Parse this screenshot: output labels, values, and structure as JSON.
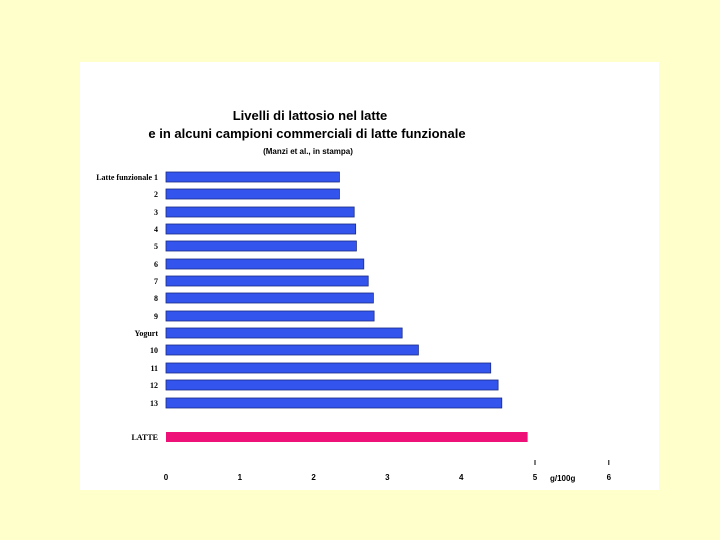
{
  "chart_data": {
    "type": "bar",
    "orientation": "horizontal",
    "title": "Livelli di lattosio nel latte",
    "subtitle": "e in alcuni campioni commerciali di latte funzionale",
    "source": "(Manzi et al., in stampa)",
    "xlabel": "g/100g",
    "ylabel": "",
    "xlim": [
      0,
      6
    ],
    "xticks": [
      "0",
      "1",
      "2",
      "3",
      "4",
      "5",
      "6"
    ],
    "grid": false,
    "categories": [
      "Latte funzionale 1",
      "2",
      "3",
      "4",
      "5",
      "6",
      "7",
      "8",
      "9",
      "Yogurt",
      "10",
      "11",
      "12",
      "13",
      "LATTE"
    ],
    "values": [
      2.35,
      2.35,
      2.55,
      2.57,
      2.58,
      2.68,
      2.74,
      2.81,
      2.82,
      3.2,
      3.42,
      4.4,
      4.5,
      4.55,
      4.9
    ],
    "colors": {
      "bar": "#3355ee",
      "highlight": "#ee1177",
      "background": "#ffffcc",
      "panel": "#ffffff"
    }
  }
}
